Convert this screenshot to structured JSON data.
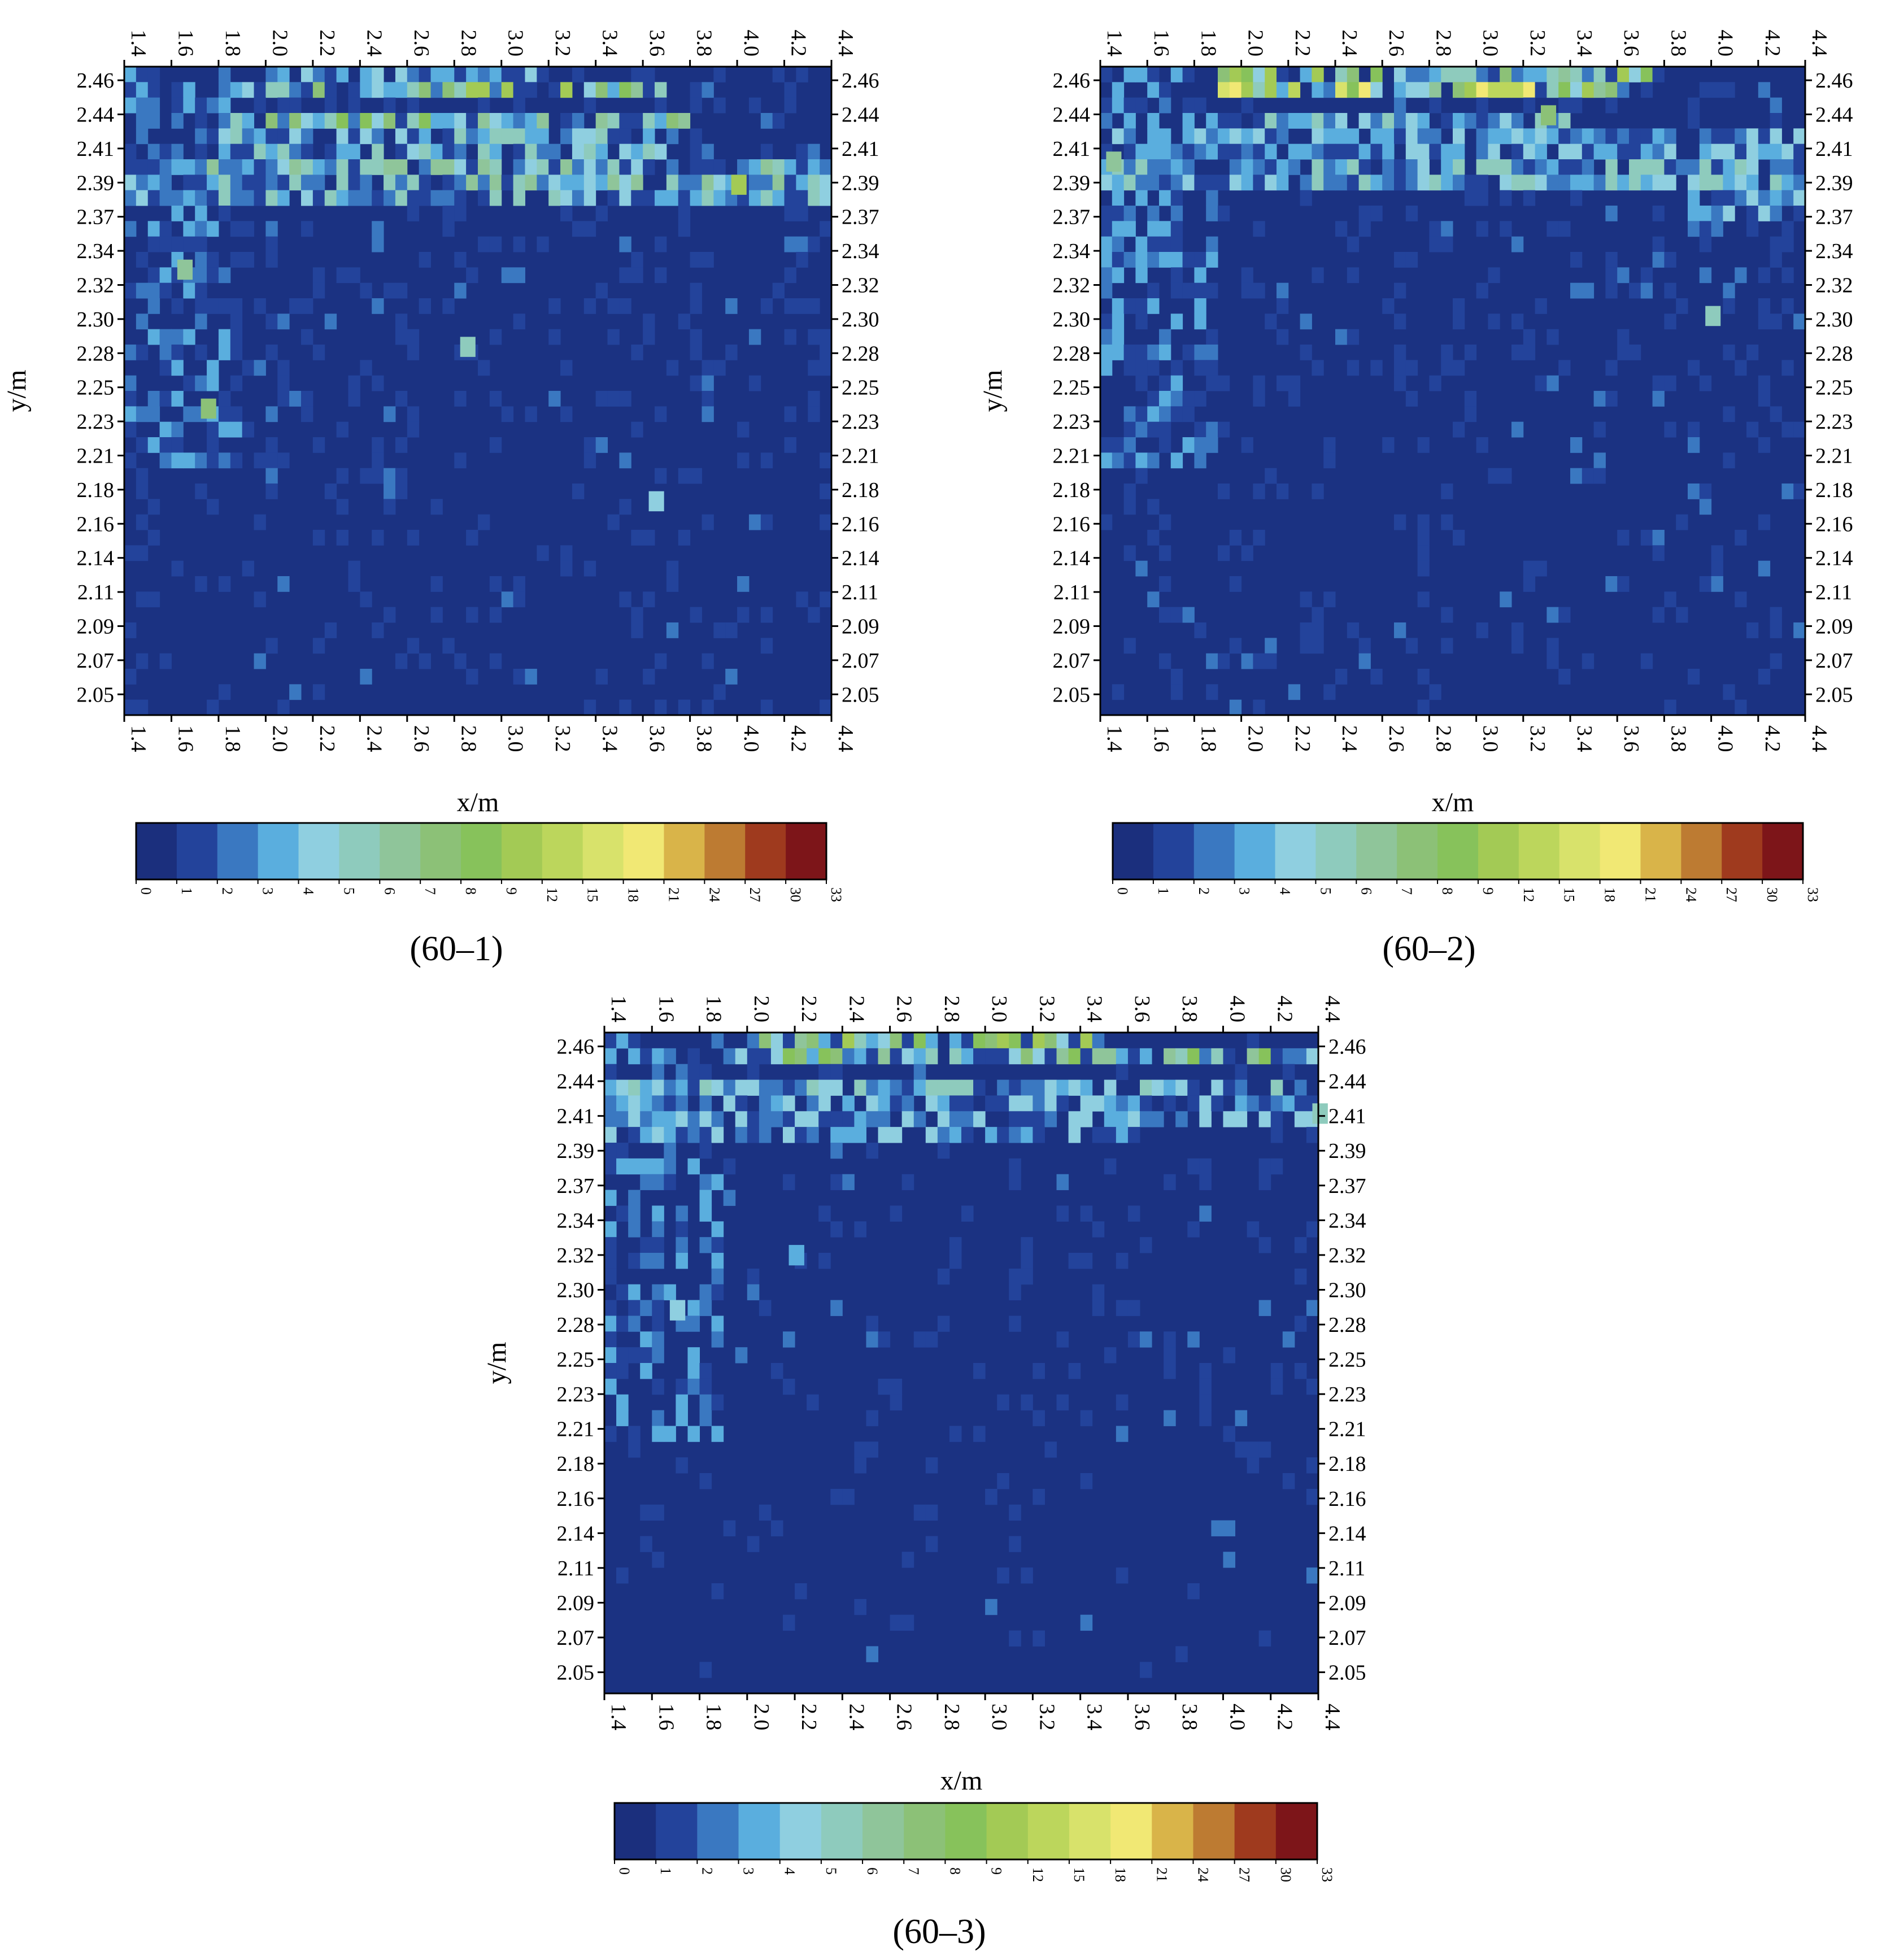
{
  "colors": {
    "background": "#1b3282",
    "scale": [
      "#1b2f7d",
      "#23439b",
      "#3a78c1",
      "#5aaede",
      "#8fcfe0",
      "#8ecbbd",
      "#8fc59a",
      "#8cc177",
      "#87c25b",
      "#a3ca55",
      "#bcd65c",
      "#d8e26b",
      "#f1e874",
      "#d9b449",
      "#bd7b32",
      "#9f3a1e",
      "#7d1519"
    ]
  },
  "chart_data": [
    {
      "type": "heatmap",
      "caption": "(60–1)",
      "xlabel": "x/m",
      "ylabel": "y/m",
      "xlim": [
        1.4,
        4.4
      ],
      "ylim": [
        2.04,
        2.46
      ],
      "x_ticks": [
        "1.4",
        "1.6",
        "1.8",
        "2.0",
        "2.2",
        "2.4",
        "2.6",
        "2.8",
        "3.0",
        "3.2",
        "3.4",
        "3.6",
        "3.8",
        "4.0",
        "4.2",
        "4.4"
      ],
      "y_ticks": [
        "2.46",
        "2.44",
        "2.41",
        "2.39",
        "2.37",
        "2.34",
        "2.32",
        "2.30",
        "2.28",
        "2.25",
        "2.23",
        "2.21",
        "2.18",
        "2.16",
        "2.14",
        "2.11",
        "2.09",
        "2.07",
        "2.05"
      ],
      "colorbar": [
        "0",
        "1",
        "2",
        "3",
        "4",
        "5",
        "6",
        "7",
        "8",
        "9",
        "12",
        "15",
        "18",
        "21",
        "24",
        "27",
        "30",
        "33"
      ],
      "band_rows": [
        {
          "y": 2.455,
          "x_range": [
            1.9,
            3.2
          ],
          "level_max": 4
        },
        {
          "y": 2.445,
          "x_range": [
            1.9,
            3.7
          ],
          "level_max": 9
        },
        {
          "y": 2.425,
          "x_range": [
            1.8,
            3.8
          ],
          "level_max": 8
        },
        {
          "y": 2.41,
          "x_range": [
            1.8,
            3.9
          ],
          "level_max": 5
        },
        {
          "y": 2.39,
          "x_range": [
            1.4,
            4.4
          ],
          "level_max": 6
        },
        {
          "y": 2.375,
          "x_range": [
            1.4,
            4.4
          ],
          "level_max": 5
        }
      ],
      "hotspots": [
        {
          "x": 1.65,
          "y": 2.33,
          "level": 6
        },
        {
          "x": 1.75,
          "y": 2.24,
          "level": 7
        },
        {
          "x": 2.85,
          "y": 2.28,
          "level": 5
        },
        {
          "x": 3.65,
          "y": 2.18,
          "level": 4
        },
        {
          "x": 4.0,
          "y": 2.385,
          "level": 9
        }
      ],
      "left_edge_activity": true,
      "bottom_activity": "low"
    },
    {
      "type": "heatmap",
      "caption": "(60–2)",
      "xlabel": "x/m",
      "ylabel": "y/m",
      "xlim": [
        1.4,
        4.4
      ],
      "ylim": [
        2.04,
        2.46
      ],
      "x_ticks": [
        "1.4",
        "1.6",
        "1.8",
        "2.0",
        "2.2",
        "2.4",
        "2.6",
        "2.8",
        "3.0",
        "3.2",
        "3.4",
        "3.6",
        "3.8",
        "4.0",
        "4.2",
        "4.4"
      ],
      "y_ticks": [
        "2.46",
        "2.44",
        "2.41",
        "2.39",
        "2.37",
        "2.34",
        "2.32",
        "2.30",
        "2.28",
        "2.25",
        "2.23",
        "2.21",
        "2.18",
        "2.16",
        "2.14",
        "2.11",
        "2.09",
        "2.07",
        "2.05"
      ],
      "colorbar": [
        "0",
        "1",
        "2",
        "3",
        "4",
        "5",
        "6",
        "7",
        "8",
        "9",
        "12",
        "15",
        "18",
        "21",
        "24",
        "27",
        "30",
        "33"
      ],
      "band_rows": [
        {
          "y": 2.455,
          "x_range": [
            1.9,
            3.8
          ],
          "level_max": 9
        },
        {
          "y": 2.445,
          "x_range": [
            1.9,
            3.6
          ],
          "level_max": 12
        },
        {
          "y": 2.425,
          "x_range": [
            1.9,
            3.4
          ],
          "level_max": 5
        },
        {
          "y": 2.41,
          "x_range": [
            1.4,
            4.4
          ],
          "level_max": 4
        },
        {
          "y": 2.39,
          "x_range": [
            1.4,
            4.4
          ],
          "level_max": 5
        },
        {
          "y": 2.37,
          "x_range": [
            3.9,
            4.4
          ],
          "level_max": 4
        }
      ],
      "hotspots": [
        {
          "x": 1.45,
          "y": 2.4,
          "level": 6
        },
        {
          "x": 4.0,
          "y": 2.3,
          "level": 5
        },
        {
          "x": 3.3,
          "y": 2.43,
          "level": 7
        }
      ],
      "left_edge_activity": true,
      "bottom_activity": "low"
    },
    {
      "type": "heatmap",
      "caption": "(60–3)",
      "xlabel": "x/m",
      "ylabel": "y/m",
      "xlim": [
        1.4,
        4.4
      ],
      "ylim": [
        2.04,
        2.46
      ],
      "x_ticks": [
        "1.4",
        "1.6",
        "1.8",
        "2.0",
        "2.2",
        "2.4",
        "2.6",
        "2.8",
        "3.0",
        "3.2",
        "3.4",
        "3.6",
        "3.8",
        "4.0",
        "4.2",
        "4.4"
      ],
      "y_ticks": [
        "2.46",
        "2.44",
        "2.41",
        "2.39",
        "2.37",
        "2.34",
        "2.32",
        "2.30",
        "2.28",
        "2.25",
        "2.23",
        "2.21",
        "2.18",
        "2.16",
        "2.14",
        "2.11",
        "2.09",
        "2.07",
        "2.05"
      ],
      "colorbar": [
        "0",
        "1",
        "2",
        "3",
        "4",
        "5",
        "6",
        "7",
        "8",
        "9",
        "12",
        "15",
        "18",
        "21",
        "24",
        "27",
        "30",
        "33"
      ],
      "band_rows": [
        {
          "y": 2.455,
          "x_range": [
            2.0,
            3.5
          ],
          "level_max": 9
        },
        {
          "y": 2.445,
          "x_range": [
            1.9,
            4.4
          ],
          "level_max": 8
        },
        {
          "y": 2.425,
          "x_range": [
            1.4,
            4.4
          ],
          "level_max": 5
        },
        {
          "y": 2.41,
          "x_range": [
            1.4,
            4.4
          ],
          "level_max": 4
        },
        {
          "y": 2.395,
          "x_range": [
            1.4,
            3.6
          ],
          "level_max": 4
        }
      ],
      "hotspots": [
        {
          "x": 1.7,
          "y": 2.285,
          "level": 4
        },
        {
          "x": 2.2,
          "y": 2.32,
          "level": 3
        },
        {
          "x": 4.4,
          "y": 2.41,
          "level": 5
        }
      ],
      "left_edge_activity": true,
      "bottom_activity": "very-low"
    }
  ]
}
